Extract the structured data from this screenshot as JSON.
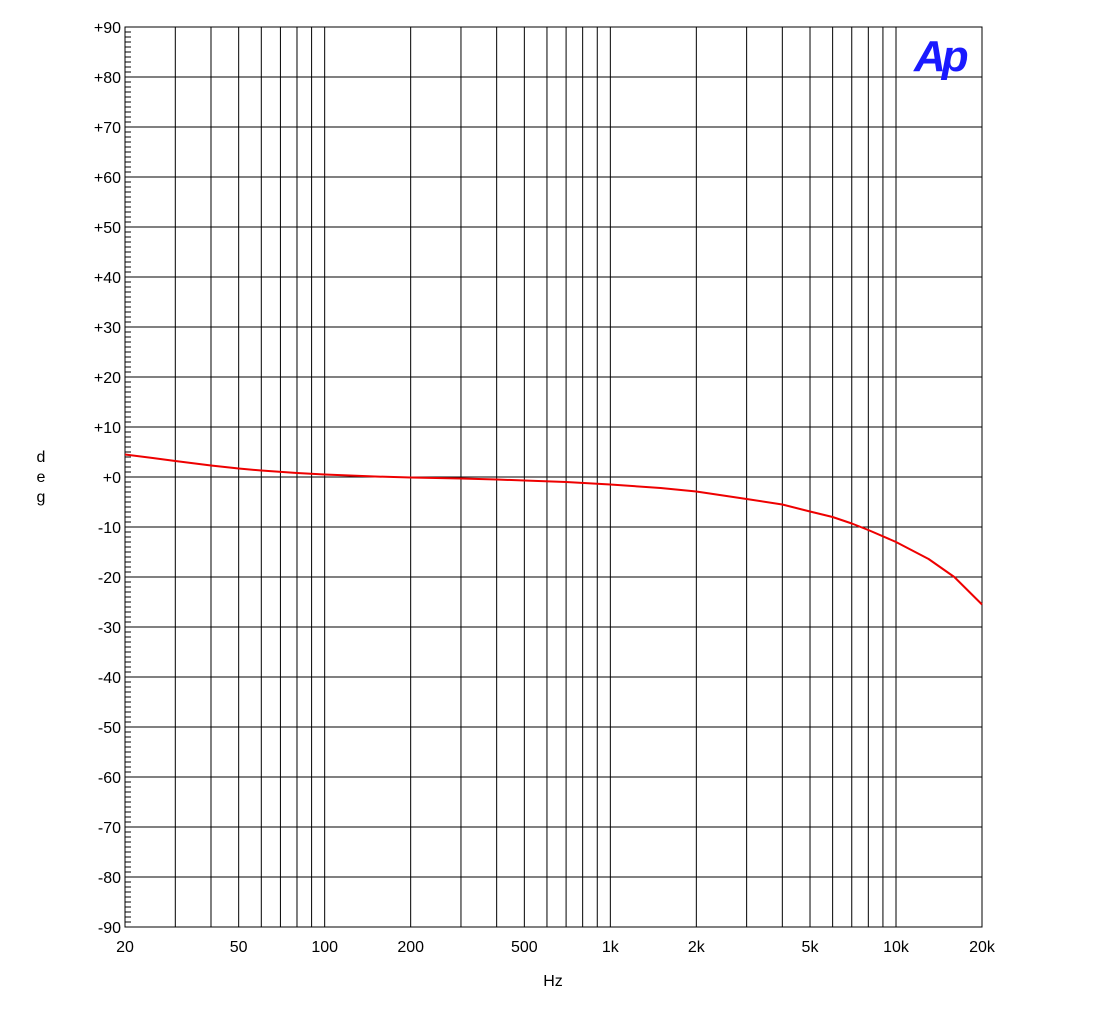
{
  "chart_data": {
    "type": "line",
    "title": "",
    "xlabel": "Hz",
    "ylabel": "deg",
    "xscale": "log",
    "xlim": [
      20,
      20000
    ],
    "ylim": [
      -90,
      90
    ],
    "grid": true,
    "x_ticks": [
      {
        "value": 20,
        "label": "20"
      },
      {
        "value": 50,
        "label": "50"
      },
      {
        "value": 100,
        "label": "100"
      },
      {
        "value": 200,
        "label": "200"
      },
      {
        "value": 500,
        "label": "500"
      },
      {
        "value": 1000,
        "label": "1k"
      },
      {
        "value": 2000,
        "label": "2k"
      },
      {
        "value": 5000,
        "label": "5k"
      },
      {
        "value": 10000,
        "label": "10k"
      },
      {
        "value": 20000,
        "label": "20k"
      }
    ],
    "y_ticks": [
      {
        "value": 90,
        "label": "+90"
      },
      {
        "value": 80,
        "label": "+80"
      },
      {
        "value": 70,
        "label": "+70"
      },
      {
        "value": 60,
        "label": "+60"
      },
      {
        "value": 50,
        "label": "+50"
      },
      {
        "value": 40,
        "label": "+40"
      },
      {
        "value": 30,
        "label": "+30"
      },
      {
        "value": 20,
        "label": "+20"
      },
      {
        "value": 10,
        "label": "+10"
      },
      {
        "value": 0,
        "label": "+0"
      },
      {
        "value": -10,
        "label": "-10"
      },
      {
        "value": -20,
        "label": "-20"
      },
      {
        "value": -30,
        "label": "-30"
      },
      {
        "value": -40,
        "label": "-40"
      },
      {
        "value": -50,
        "label": "-50"
      },
      {
        "value": -60,
        "label": "-60"
      },
      {
        "value": -70,
        "label": "-70"
      },
      {
        "value": -80,
        "label": "-80"
      },
      {
        "value": -90,
        "label": "-90"
      }
    ],
    "series": [
      {
        "color": "#ee0000",
        "x": [
          20,
          25,
          30,
          40,
          50,
          60,
          80,
          100,
          150,
          200,
          300,
          400,
          500,
          700,
          1000,
          1500,
          2000,
          3000,
          4000,
          5000,
          6000,
          7000,
          8000,
          10000,
          13000,
          16000,
          20000
        ],
        "y": [
          4.5,
          3.8,
          3.2,
          2.3,
          1.7,
          1.3,
          0.8,
          0.5,
          0.1,
          -0.1,
          -0.3,
          -0.5,
          -0.7,
          -1.0,
          -1.5,
          -2.2,
          -2.9,
          -4.4,
          -5.5,
          -6.9,
          -8.0,
          -9.3,
          -10.6,
          -13.0,
          -16.4,
          -20.0,
          -25.5
        ]
      }
    ]
  },
  "brand": {
    "logo_text": "Ap",
    "logo_color": "#1a1aff"
  }
}
